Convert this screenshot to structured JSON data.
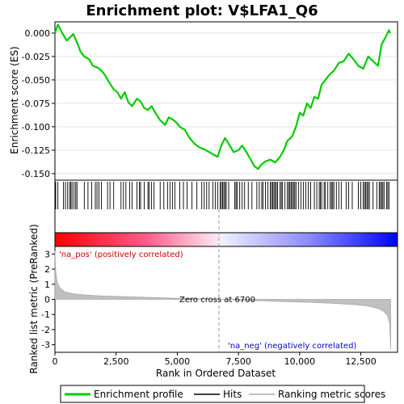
{
  "chart_data": {
    "type": "line",
    "title": "Enrichment plot: V$LFA1_Q6",
    "panels": {
      "enrichment": {
        "ylabel": "Enrichment score (ES)",
        "ylim": [
          -0.157,
          0.012
        ],
        "yticks": [
          0.0,
          -0.025,
          -0.05,
          -0.075,
          -0.1,
          -0.125,
          -0.15
        ],
        "ytick_labels": [
          "0.000",
          "-0.025",
          "-0.050",
          "-0.075",
          "-0.100",
          "-0.125",
          "-0.150"
        ],
        "series": {
          "name": "Enrichment profile",
          "color": "#00cc00",
          "x": [
            0,
            120,
            300,
            480,
            600,
            750,
            900,
            1050,
            1200,
            1400,
            1550,
            1750,
            1900,
            2050,
            2200,
            2400,
            2550,
            2700,
            2850,
            3000,
            3150,
            3350,
            3500,
            3650,
            3800,
            3950,
            4100,
            4300,
            4500,
            4650,
            4800,
            4950,
            5100,
            5300,
            5500,
            5700,
            5900,
            6100,
            6300,
            6500,
            6650,
            6800,
            6950,
            7100,
            7300,
            7500,
            7650,
            7850,
            8000,
            8150,
            8300,
            8450,
            8600,
            8800,
            9000,
            9200,
            9350,
            9500,
            9700,
            9850,
            10000,
            10150,
            10300,
            10450,
            10600,
            10750,
            10900,
            11050,
            11200,
            11400,
            11600,
            11800,
            12000,
            12200,
            12400,
            12600,
            12800,
            13000,
            13200,
            13350,
            13500,
            13650,
            13700
          ],
          "y": [
            0.0,
            0.009,
            0.0,
            -0.008,
            -0.005,
            -0.001,
            -0.01,
            -0.02,
            -0.025,
            -0.028,
            -0.035,
            -0.037,
            -0.04,
            -0.045,
            -0.052,
            -0.06,
            -0.063,
            -0.07,
            -0.063,
            -0.074,
            -0.078,
            -0.07,
            -0.073,
            -0.08,
            -0.082,
            -0.078,
            -0.085,
            -0.093,
            -0.098,
            -0.09,
            -0.092,
            -0.095,
            -0.1,
            -0.103,
            -0.112,
            -0.118,
            -0.122,
            -0.124,
            -0.127,
            -0.13,
            -0.132,
            -0.12,
            -0.112,
            -0.118,
            -0.127,
            -0.125,
            -0.12,
            -0.128,
            -0.135,
            -0.142,
            -0.145,
            -0.14,
            -0.137,
            -0.135,
            -0.138,
            -0.132,
            -0.125,
            -0.115,
            -0.11,
            -0.1,
            -0.085,
            -0.088,
            -0.075,
            -0.08,
            -0.068,
            -0.07,
            -0.055,
            -0.05,
            -0.045,
            -0.04,
            -0.032,
            -0.03,
            -0.022,
            -0.028,
            -0.035,
            -0.038,
            -0.025,
            -0.03,
            -0.035,
            -0.012,
            -0.005,
            0.003,
            0.0
          ]
        }
      },
      "hits": {
        "name": "Hits",
        "positions": [
          30,
          120,
          350,
          430,
          520,
          600,
          650,
          700,
          780,
          850,
          900,
          1200,
          1350,
          1500,
          1650,
          1720,
          1800,
          1900,
          2150,
          2250,
          2400,
          2700,
          2800,
          2900,
          3050,
          3150,
          3350,
          3450,
          3500,
          3650,
          3800,
          3850,
          3950,
          4050,
          4300,
          4450,
          4600,
          4700,
          4800,
          4900,
          5100,
          5250,
          5400,
          5600,
          5800,
          6000,
          6100,
          6200,
          6300,
          6450,
          6550,
          6650,
          6750,
          6800,
          6850,
          6900,
          6950,
          7000,
          7100,
          7350,
          7400,
          7450,
          7550,
          7650,
          7750,
          7900,
          8050,
          8250,
          8350,
          8450,
          8500,
          8600,
          8700,
          8800,
          8850,
          8900,
          8950,
          9000,
          9050,
          9100,
          9200,
          9250,
          9300,
          9400,
          9500,
          9550,
          9600,
          9650,
          9700,
          9750,
          9800,
          9850,
          9950,
          10050,
          10150,
          10250,
          10350,
          10450,
          10600,
          10700,
          10800,
          10850,
          10900,
          11000,
          11050,
          11150,
          11250,
          11300,
          11350,
          11400,
          11500,
          11600,
          11700,
          11900,
          12000,
          12150,
          12400,
          12500,
          12600,
          12650,
          12700,
          12750,
          12800,
          12850,
          13000,
          13150,
          13250,
          13300,
          13350,
          13400,
          13450,
          13550,
          13600,
          13650
        ]
      },
      "ranked_metric": {
        "name": "Ranking metric scores",
        "ylabel": "Ranked list metric (PreRanked)",
        "xlabel": "Rank in Ordered Dataset",
        "xlim": [
          0,
          14000
        ],
        "ylim": [
          -3.5,
          3.5
        ],
        "xticks": [
          0,
          2500,
          5000,
          7500,
          10000,
          12500
        ],
        "xtick_labels": [
          "0",
          "2,500",
          "5,000",
          "7,500",
          "10,000",
          "12,500"
        ],
        "yticks": [
          3,
          2,
          1,
          0,
          -1,
          -2,
          -3
        ],
        "ytick_labels": [
          "3",
          "2",
          "1",
          "0",
          "-1",
          "-2",
          "-3"
        ],
        "x": [
          0,
          20,
          50,
          100,
          200,
          400,
          700,
          1000,
          1500,
          2000,
          3000,
          4000,
          5000,
          6000,
          6700,
          7500,
          8500,
          9500,
          10500,
          11500,
          12300,
          12800,
          13200,
          13450,
          13600,
          13680,
          13720
        ],
        "y": [
          3.2,
          2.2,
          1.6,
          1.1,
          0.75,
          0.5,
          0.38,
          0.32,
          0.26,
          0.22,
          0.17,
          0.12,
          0.07,
          0.03,
          0.0,
          -0.05,
          -0.1,
          -0.15,
          -0.2,
          -0.27,
          -0.35,
          -0.45,
          -0.6,
          -0.8,
          -1.1,
          -1.6,
          -3.3
        ]
      },
      "zero_cross": {
        "value": 6700,
        "label": "Zero cross at 6700"
      },
      "pos_label": "'na_pos' (positively correlated)",
      "neg_label": "'na_neg' (negatively correlated)"
    },
    "legend": {
      "placement": "bottom",
      "entries": [
        {
          "label": "Enrichment profile",
          "color": "#00cc00"
        },
        {
          "label": "Hits",
          "color": "#000000"
        },
        {
          "label": "Ranking metric scores",
          "color": "#c0c0c0"
        }
      ]
    },
    "colors": {
      "pos_text": "#cc0000",
      "neg_text": "#0000cc",
      "fill": "#c0c0c0"
    }
  }
}
